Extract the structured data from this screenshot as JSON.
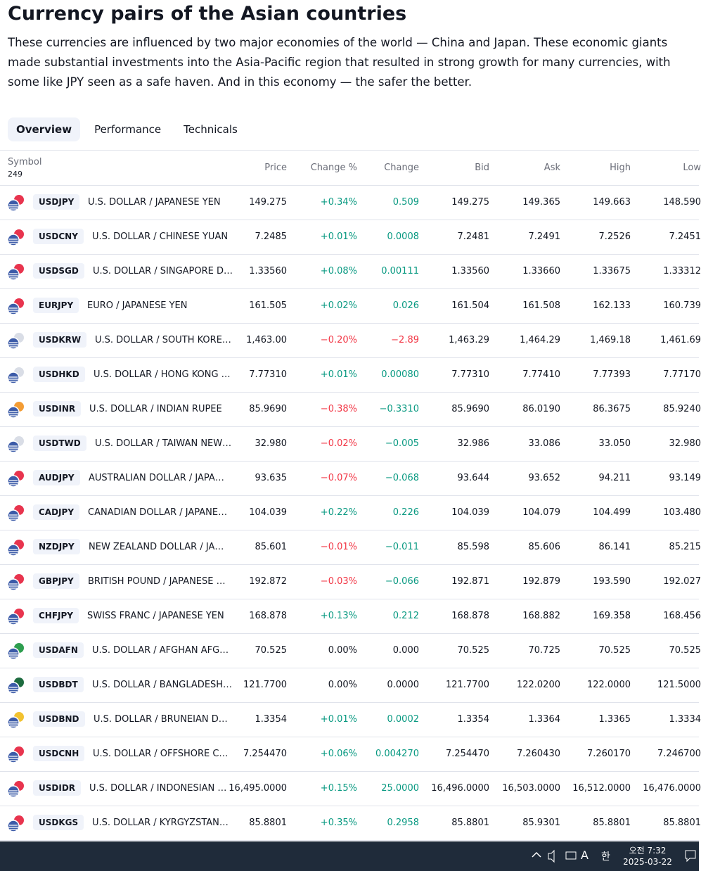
{
  "header": {
    "title": "Currency pairs of the Asian countries",
    "description": "These currencies are influenced by two major economies of the world — China and Japan. These economic giants made substantial investments into the Asia-Pacific region that resulted in strong growth for many currencies, with some like JPY seen as a safe haven. And in this economy — the safer the better."
  },
  "tabs": [
    "Overview",
    "Performance",
    "Technicals"
  ],
  "table": {
    "symbol_header": "Symbol",
    "count": "249",
    "columns": [
      "Price",
      "Change %",
      "Change",
      "Bid",
      "Ask",
      "High",
      "Low"
    ],
    "rows": [
      {
        "symbol": "USDJPY",
        "name": "U.S. DOLLAR / JAPANESE YEN",
        "flag": "#e8344e",
        "cells": [
          "149.275",
          "+0.34%",
          "0.509",
          "149.275",
          "149.365",
          "149.663",
          "148.590"
        ]
      },
      {
        "symbol": "USDCNY",
        "name": "U.S. DOLLAR / CHINESE YUAN",
        "flag": "#e8344e",
        "cells": [
          "7.2485",
          "+0.01%",
          "0.0008",
          "7.2481",
          "7.2491",
          "7.2526",
          "7.2451"
        ]
      },
      {
        "symbol": "USDSGD",
        "name": "U.S. DOLLAR / SINGAPORE D…",
        "flag": "#e8344e",
        "cells": [
          "1.33560",
          "+0.08%",
          "0.00111",
          "1.33560",
          "1.33660",
          "1.33675",
          "1.33312"
        ]
      },
      {
        "symbol": "EURJPY",
        "name": "EURO / JAPANESE YEN",
        "flag": "#e8344e",
        "cells": [
          "161.505",
          "+0.02%",
          "0.026",
          "161.504",
          "161.508",
          "162.133",
          "160.739"
        ]
      },
      {
        "symbol": "USDKRW",
        "name": "U.S. DOLLAR / SOUTH KORE…",
        "flag": "#d9dde6",
        "cells": [
          "1,463.00",
          "−0.20%",
          "−2.89",
          "1,463.29",
          "1,464.29",
          "1,469.18",
          "1,461.69"
        ]
      },
      {
        "symbol": "USDHKD",
        "name": "U.S. DOLLAR / HONG KONG …",
        "flag": "#d9dde6",
        "cells": [
          "7.77310",
          "+0.01%",
          "0.00080",
          "7.77310",
          "7.77410",
          "7.77393",
          "7.77170"
        ]
      },
      {
        "symbol": "USDINR",
        "name": "U.S. DOLLAR / INDIAN RUPEE",
        "flag": "#f39c34",
        "cells": [
          "85.9690",
          "−0.38%",
          "−0.3310",
          "85.9690",
          "86.0190",
          "86.3675",
          "85.9240"
        ]
      },
      {
        "symbol": "USDTWD",
        "name": "U.S. DOLLAR / TAIWAN NEW…",
        "flag": "#d9dde6",
        "cells": [
          "32.980",
          "−0.02%",
          "−0.005",
          "32.986",
          "33.086",
          "33.050",
          "32.980"
        ]
      },
      {
        "symbol": "AUDJPY",
        "name": "AUSTRALIAN DOLLAR / JAPA…",
        "flag": "#e8344e",
        "cells": [
          "93.635",
          "−0.07%",
          "−0.068",
          "93.644",
          "93.652",
          "94.211",
          "93.149"
        ]
      },
      {
        "symbol": "CADJPY",
        "name": "CANADIAN DOLLAR / JAPANE…",
        "flag": "#e8344e",
        "cells": [
          "104.039",
          "+0.22%",
          "0.226",
          "104.039",
          "104.079",
          "104.499",
          "103.480"
        ]
      },
      {
        "symbol": "NZDJPY",
        "name": "NEW ZEALAND DOLLAR / JA…",
        "flag": "#e8344e",
        "cells": [
          "85.601",
          "−0.01%",
          "−0.011",
          "85.598",
          "85.606",
          "86.141",
          "85.215"
        ]
      },
      {
        "symbol": "GBPJPY",
        "name": "BRITISH POUND / JAPANESE …",
        "flag": "#e8344e",
        "cells": [
          "192.872",
          "−0.03%",
          "−0.066",
          "192.871",
          "192.879",
          "193.590",
          "192.027"
        ]
      },
      {
        "symbol": "CHFJPY",
        "name": "SWISS FRANC / JAPANESE YEN",
        "flag": "#e8344e",
        "cells": [
          "168.878",
          "+0.13%",
          "0.212",
          "168.878",
          "168.882",
          "169.358",
          "168.456"
        ]
      },
      {
        "symbol": "USDAFN",
        "name": "U.S. DOLLAR / AFGHAN AFG…",
        "flag": "#2e9e4f",
        "cells": [
          "70.525",
          "0.00%",
          "0.000",
          "70.525",
          "70.725",
          "70.525",
          "70.525"
        ]
      },
      {
        "symbol": "USDBDT",
        "name": "U.S. DOLLAR / BANGLADESH…",
        "flag": "#1d6b3f",
        "cells": [
          "121.7700",
          "0.00%",
          "0.0000",
          "121.7700",
          "122.0200",
          "122.0000",
          "121.5000"
        ]
      },
      {
        "symbol": "USDBND",
        "name": "U.S. DOLLAR / BRUNEIAN D…",
        "flag": "#f2c230",
        "cells": [
          "1.3354",
          "+0.01%",
          "0.0002",
          "1.3354",
          "1.3364",
          "1.3365",
          "1.3334"
        ]
      },
      {
        "symbol": "USDCNH",
        "name": "U.S. DOLLAR / OFFSHORE C…",
        "flag": "#e8344e",
        "cells": [
          "7.254470",
          "+0.06%",
          "0.004270",
          "7.254470",
          "7.260430",
          "7.260170",
          "7.246700"
        ]
      },
      {
        "symbol": "USDIDR",
        "name": "U.S. DOLLAR / INDONESIAN …",
        "flag": "#e8344e",
        "cells": [
          "16,495.0000",
          "+0.15%",
          "25.0000",
          "16,496.0000",
          "16,503.0000",
          "16,512.0000",
          "16,476.0000"
        ]
      },
      {
        "symbol": "USDKGS",
        "name": "U.S. DOLLAR / KYRGYZSTAN…",
        "flag": "#e8344e",
        "cells": [
          "85.8801",
          "+0.35%",
          "0.2958",
          "85.8801",
          "85.9301",
          "85.8801",
          "85.8801"
        ]
      }
    ]
  },
  "taskbar": {
    "ime": "A",
    "lang": "한",
    "time": "오전 7:32",
    "date": "2025-03-22"
  }
}
